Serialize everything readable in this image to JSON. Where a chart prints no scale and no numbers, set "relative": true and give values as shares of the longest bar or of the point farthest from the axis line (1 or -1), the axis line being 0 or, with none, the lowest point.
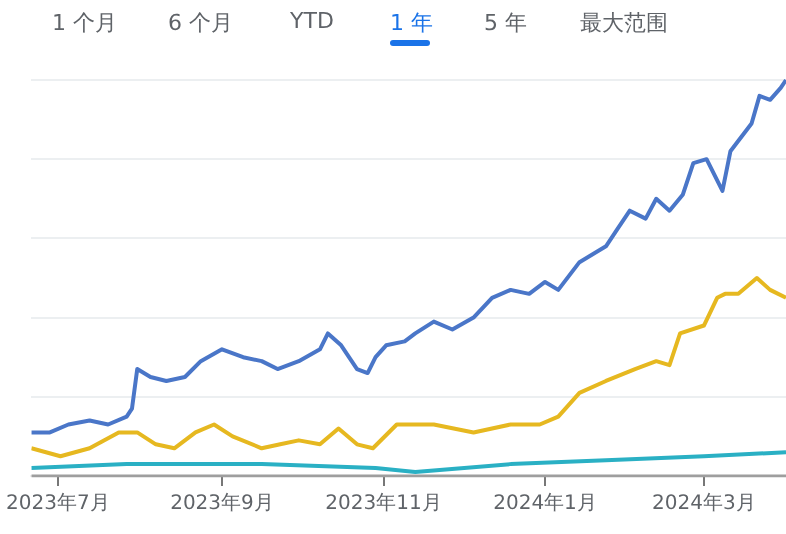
{
  "chart_data": {
    "type": "line",
    "relative": true,
    "legend": false,
    "grid": "y",
    "marker": "none",
    "line_style": "solid",
    "annotations": [
      "1 个月",
      "6 个月",
      "YTD",
      "1 年",
      "5 年",
      "最大范围"
    ],
    "xlim": [
      "2023-06-21",
      "2024-04-01"
    ],
    "xticks": [
      {
        "value": "2023-07-01",
        "label": "2023年7月"
      },
      {
        "value": "2023-09-01",
        "label": "2023年9月"
      },
      {
        "value": "2023-11-01",
        "label": "2023年11月"
      },
      {
        "value": "2024-01-01",
        "label": "2024年1月"
      },
      {
        "value": "2024-03-01",
        "label": "2024年3月"
      }
    ],
    "ref_lines": [
      {
        "axis": "y",
        "value": 0,
        "color": "#9e9e9e"
      }
    ],
    "series": [
      {
        "color": "#4a76c8",
        "x": [
          "2023-06-21",
          "2023-06-28",
          "2023-07-05",
          "2023-07-13",
          "2023-07-20",
          "2023-07-27",
          "2023-07-29",
          "2023-07-31",
          "2023-08-05",
          "2023-08-11",
          "2023-08-18",
          "2023-08-24",
          "2023-09-01",
          "2023-09-09",
          "2023-09-16",
          "2023-09-22",
          "2023-09-30",
          "2023-10-08",
          "2023-10-11",
          "2023-10-16",
          "2023-10-22",
          "2023-10-26",
          "2023-10-29",
          "2023-11-02",
          "2023-11-09",
          "2023-11-13",
          "2023-11-20",
          "2023-11-27",
          "2023-12-05",
          "2023-12-12",
          "2023-12-19",
          "2023-12-26",
          "2024-01-01",
          "2024-01-06",
          "2024-01-14",
          "2024-01-24",
          "2024-01-28",
          "2024-02-02",
          "2024-02-08",
          "2024-02-12",
          "2024-02-17",
          "2024-02-22",
          "2024-02-26",
          "2024-03-02",
          "2024-03-08",
          "2024-03-11",
          "2024-03-19",
          "2024-03-22",
          "2024-03-26",
          "2024-03-30",
          "2024-04-01"
        ],
        "values": [
          0.11,
          0.11,
          0.13,
          0.14,
          0.13,
          0.15,
          0.17,
          0.27,
          0.25,
          0.24,
          0.25,
          0.29,
          0.32,
          0.3,
          0.29,
          0.27,
          0.29,
          0.32,
          0.36,
          0.33,
          0.27,
          0.26,
          0.3,
          0.33,
          0.34,
          0.36,
          0.39,
          0.37,
          0.4,
          0.45,
          0.47,
          0.46,
          0.49,
          0.47,
          0.54,
          0.58,
          0.62,
          0.67,
          0.65,
          0.7,
          0.67,
          0.71,
          0.79,
          0.8,
          0.72,
          0.82,
          0.89,
          0.96,
          0.95,
          0.98,
          1
        ]
      },
      {
        "color": "#e6b820",
        "x": [
          "2023-06-21",
          "2023-07-02",
          "2023-07-13",
          "2023-07-24",
          "2023-07-31",
          "2023-08-07",
          "2023-08-14",
          "2023-08-22",
          "2023-08-29",
          "2023-09-05",
          "2023-09-16",
          "2023-09-23",
          "2023-09-30",
          "2023-10-08",
          "2023-10-15",
          "2023-10-22",
          "2023-10-28",
          "2023-11-06",
          "2023-11-13",
          "2023-11-20",
          "2023-12-05",
          "2023-12-19",
          "2023-12-30",
          "2024-01-06",
          "2024-01-14",
          "2024-01-24",
          "2024-02-04",
          "2024-02-12",
          "2024-02-17",
          "2024-02-21",
          "2024-03-01",
          "2024-03-06",
          "2024-03-09",
          "2024-03-14",
          "2024-03-21",
          "2024-03-26",
          "2024-04-01"
        ],
        "values": [
          0.07,
          0.05,
          0.07,
          0.11,
          0.11,
          0.08,
          0.07,
          0.11,
          0.13,
          0.1,
          0.07,
          0.08,
          0.09,
          0.08,
          0.12,
          0.08,
          0.07,
          0.13,
          0.13,
          0.13,
          0.11,
          0.13,
          0.13,
          0.15,
          0.21,
          0.24,
          0.27,
          0.29,
          0.28,
          0.36,
          0.38,
          0.45,
          0.46,
          0.46,
          0.5,
          0.47,
          0.45
        ]
      },
      {
        "color": "#2ab0c4",
        "x": [
          "2023-06-21",
          "2023-07-27",
          "2023-09-16",
          "2023-10-29",
          "2023-11-13",
          "2023-12-19",
          "2024-01-24",
          "2024-03-01",
          "2024-04-01"
        ],
        "values": [
          0.02,
          0.03,
          0.03,
          0.02,
          0.01,
          0.03,
          0.04,
          0.05,
          0.06
        ]
      }
    ]
  }
}
